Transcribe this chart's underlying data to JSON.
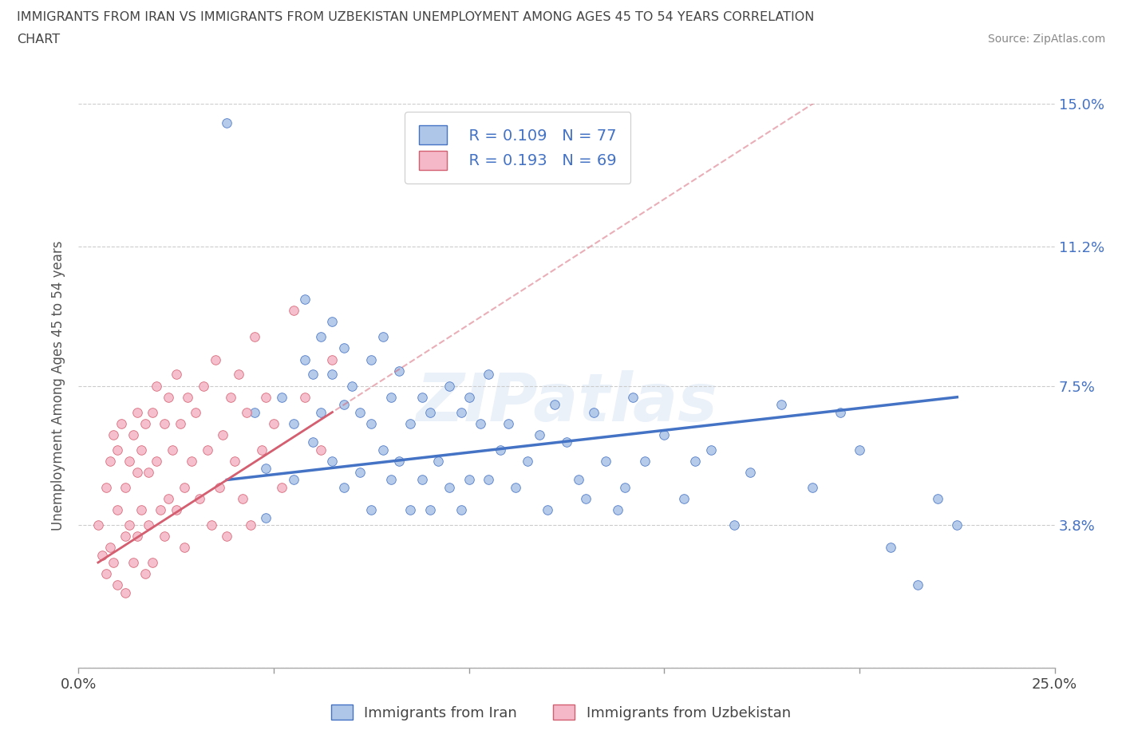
{
  "title_line1": "IMMIGRANTS FROM IRAN VS IMMIGRANTS FROM UZBEKISTAN UNEMPLOYMENT AMONG AGES 45 TO 54 YEARS CORRELATION",
  "title_line2": "CHART",
  "source_text": "Source: ZipAtlas.com",
  "ylabel": "Unemployment Among Ages 45 to 54 years",
  "xlim": [
    0.0,
    0.25
  ],
  "ylim": [
    0.0,
    0.15
  ],
  "yticks": [
    0.0,
    0.038,
    0.075,
    0.112,
    0.15
  ],
  "ytick_labels": [
    "",
    "3.8%",
    "7.5%",
    "11.2%",
    "15.0%"
  ],
  "xticks": [
    0.0,
    0.25
  ],
  "xtick_labels": [
    "0.0%",
    "25.0%"
  ],
  "legend_iran_R": "R = 0.109",
  "legend_iran_N": "N = 77",
  "legend_uzbek_R": "R = 0.193",
  "legend_uzbek_N": "N = 69",
  "color_iran": "#aec6e8",
  "color_uzbek": "#f5b8c8",
  "color_iran_line": "#4472c4",
  "color_uzbek_line": "#d45f70",
  "color_grid": "#cccccc",
  "watermark_text": "ZIPatlas",
  "iran_x": [
    0.038,
    0.045,
    0.048,
    0.048,
    0.052,
    0.055,
    0.055,
    0.058,
    0.058,
    0.06,
    0.06,
    0.062,
    0.062,
    0.065,
    0.065,
    0.065,
    0.068,
    0.068,
    0.068,
    0.07,
    0.072,
    0.072,
    0.075,
    0.075,
    0.075,
    0.078,
    0.078,
    0.08,
    0.08,
    0.082,
    0.082,
    0.085,
    0.085,
    0.088,
    0.088,
    0.09,
    0.09,
    0.092,
    0.095,
    0.095,
    0.098,
    0.098,
    0.1,
    0.1,
    0.103,
    0.105,
    0.105,
    0.108,
    0.11,
    0.112,
    0.115,
    0.118,
    0.12,
    0.122,
    0.125,
    0.128,
    0.13,
    0.132,
    0.135,
    0.138,
    0.14,
    0.142,
    0.145,
    0.15,
    0.155,
    0.158,
    0.162,
    0.168,
    0.172,
    0.18,
    0.188,
    0.195,
    0.2,
    0.208,
    0.215,
    0.22,
    0.225
  ],
  "iran_y": [
    0.145,
    0.068,
    0.053,
    0.04,
    0.072,
    0.065,
    0.05,
    0.098,
    0.082,
    0.078,
    0.06,
    0.088,
    0.068,
    0.092,
    0.078,
    0.055,
    0.085,
    0.07,
    0.048,
    0.075,
    0.068,
    0.052,
    0.082,
    0.065,
    0.042,
    0.088,
    0.058,
    0.072,
    0.05,
    0.079,
    0.055,
    0.065,
    0.042,
    0.072,
    0.05,
    0.068,
    0.042,
    0.055,
    0.075,
    0.048,
    0.068,
    0.042,
    0.072,
    0.05,
    0.065,
    0.078,
    0.05,
    0.058,
    0.065,
    0.048,
    0.055,
    0.062,
    0.042,
    0.07,
    0.06,
    0.05,
    0.045,
    0.068,
    0.055,
    0.042,
    0.048,
    0.072,
    0.055,
    0.062,
    0.045,
    0.055,
    0.058,
    0.038,
    0.052,
    0.07,
    0.048,
    0.068,
    0.058,
    0.032,
    0.022,
    0.045,
    0.038
  ],
  "uzbek_x": [
    0.005,
    0.006,
    0.007,
    0.007,
    0.008,
    0.008,
    0.009,
    0.009,
    0.01,
    0.01,
    0.01,
    0.011,
    0.012,
    0.012,
    0.012,
    0.013,
    0.013,
    0.014,
    0.014,
    0.015,
    0.015,
    0.015,
    0.016,
    0.016,
    0.017,
    0.017,
    0.018,
    0.018,
    0.019,
    0.019,
    0.02,
    0.02,
    0.021,
    0.022,
    0.022,
    0.023,
    0.023,
    0.024,
    0.025,
    0.025,
    0.026,
    0.027,
    0.027,
    0.028,
    0.029,
    0.03,
    0.031,
    0.032,
    0.033,
    0.034,
    0.035,
    0.036,
    0.037,
    0.038,
    0.039,
    0.04,
    0.041,
    0.042,
    0.043,
    0.044,
    0.045,
    0.047,
    0.048,
    0.05,
    0.052,
    0.055,
    0.058,
    0.062,
    0.065
  ],
  "uzbek_y": [
    0.038,
    0.03,
    0.048,
    0.025,
    0.055,
    0.032,
    0.062,
    0.028,
    0.058,
    0.042,
    0.022,
    0.065,
    0.048,
    0.035,
    0.02,
    0.055,
    0.038,
    0.062,
    0.028,
    0.068,
    0.052,
    0.035,
    0.058,
    0.042,
    0.025,
    0.065,
    0.052,
    0.038,
    0.068,
    0.028,
    0.075,
    0.055,
    0.042,
    0.065,
    0.035,
    0.072,
    0.045,
    0.058,
    0.078,
    0.042,
    0.065,
    0.048,
    0.032,
    0.072,
    0.055,
    0.068,
    0.045,
    0.075,
    0.058,
    0.038,
    0.082,
    0.048,
    0.062,
    0.035,
    0.072,
    0.055,
    0.078,
    0.045,
    0.068,
    0.038,
    0.088,
    0.058,
    0.072,
    0.065,
    0.048,
    0.095,
    0.072,
    0.058,
    0.082
  ],
  "iran_trendline_start_x": 0.038,
  "iran_trendline_end_x": 0.225,
  "iran_trendline_start_y": 0.05,
  "iran_trendline_end_y": 0.072,
  "uzbek_trendline_start_x": 0.005,
  "uzbek_trendline_end_x": 0.065,
  "uzbek_trendline_start_y": 0.028,
  "uzbek_trendline_end_y": 0.068
}
